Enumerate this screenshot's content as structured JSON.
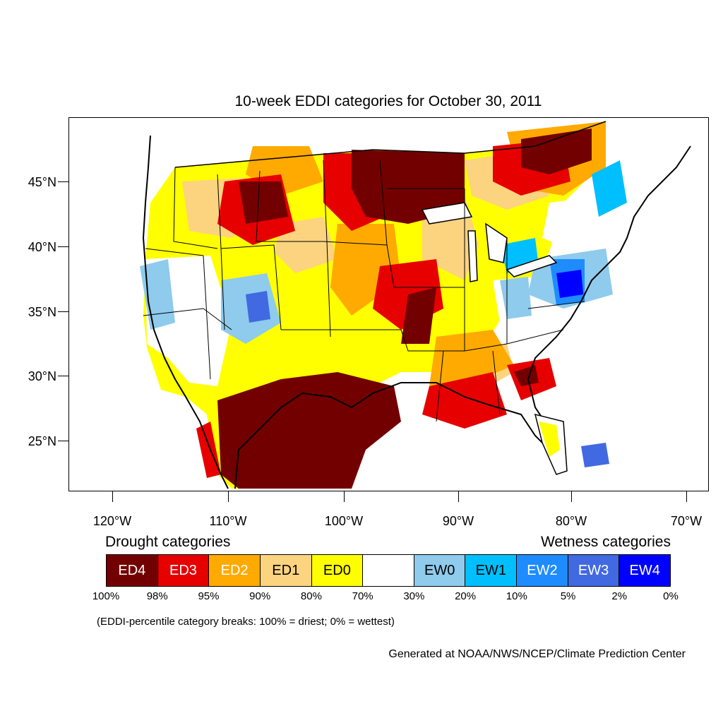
{
  "title": "10-week EDDI categories for October 30, 2011",
  "map": {
    "lat_labels": [
      "45°N",
      "40°N",
      "35°N",
      "30°N",
      "25°N"
    ],
    "lon_labels": [
      "120°W",
      "110°W",
      "100°W",
      "90°W",
      "80°W",
      "70°W"
    ]
  },
  "legend": {
    "left_title": "Drought categories",
    "right_title": "Wetness categories",
    "categories": [
      {
        "label": "ED4",
        "color": "#730000",
        "text_color": "#ffffff"
      },
      {
        "label": "ED3",
        "color": "#e60000",
        "text_color": "#ffffff"
      },
      {
        "label": "ED2",
        "color": "#ffaa00",
        "text_color": "#ffffff"
      },
      {
        "label": "ED1",
        "color": "#fcd37f",
        "text_color": "#000000"
      },
      {
        "label": "ED0",
        "color": "#ffff00",
        "text_color": "#000000"
      },
      {
        "label": "",
        "color": "#ffffff",
        "text_color": "#000000"
      },
      {
        "label": "EW0",
        "color": "#8ecbec",
        "text_color": "#000000"
      },
      {
        "label": "EW1",
        "color": "#00bfff",
        "text_color": "#000000"
      },
      {
        "label": "EW2",
        "color": "#1e8cff",
        "text_color": "#ffffff"
      },
      {
        "label": "EW3",
        "color": "#4169e1",
        "text_color": "#ffffff"
      },
      {
        "label": "EW4",
        "color": "#0000ff",
        "text_color": "#ffffff"
      }
    ],
    "breaks": [
      "100%",
      "98%",
      "95%",
      "90%",
      "80%",
      "70%",
      "30%",
      "20%",
      "10%",
      "5%",
      "2%",
      "0%"
    ]
  },
  "footnote": "(EDDI-percentile category breaks: 100% = driest; 0% = wettest)",
  "credit": "Generated at NOAA/NWS/NCEP/Climate Prediction Center"
}
